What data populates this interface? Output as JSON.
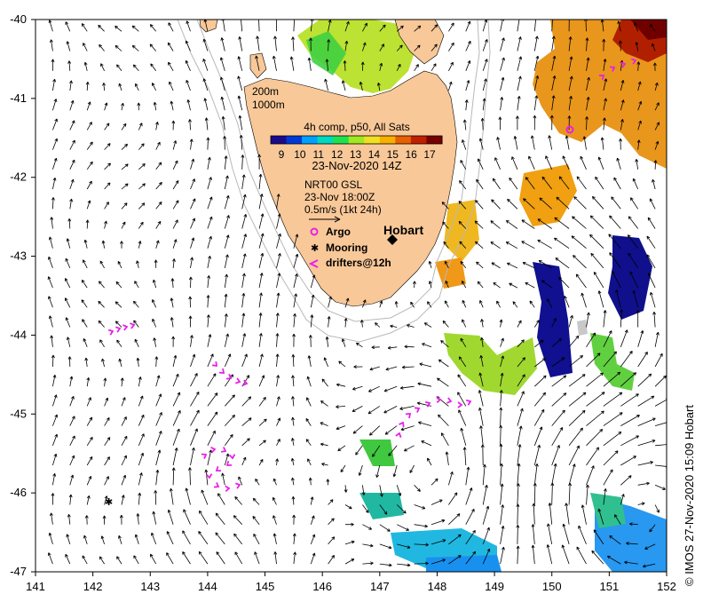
{
  "map": {
    "lon_range": [
      141,
      152
    ],
    "lat_range": [
      -47,
      -40
    ],
    "lon_ticks": [
      "141",
      "142",
      "143",
      "144",
      "145",
      "146",
      "147",
      "148",
      "149",
      "150",
      "151",
      "152"
    ],
    "lat_ticks": [
      "-40",
      "-41",
      "-42",
      "-43",
      "-44",
      "-45",
      "-46",
      "-47"
    ]
  },
  "colors": {
    "land": "#f8c898",
    "bathy": "#b8b8b8",
    "drifter": "#e820e8",
    "arrow": "#000000",
    "scale": [
      "#1a0a8c",
      "#0038d8",
      "#00a0ff",
      "#00d8c0",
      "#20e050",
      "#a0e820",
      "#f0e020",
      "#f8b000",
      "#e86000",
      "#c02000",
      "#780000"
    ]
  },
  "contours": {
    "label_200": "200m",
    "label_1000": "1000m"
  },
  "sst": {
    "title": "4h comp, p50, All Sats",
    "scale_labels": [
      "9",
      "10",
      "11",
      "12",
      "13",
      "14",
      "15",
      "16",
      "17"
    ],
    "date": "23-Nov-2020 14Z"
  },
  "currents": {
    "source": "NRT00 GSL",
    "time": "23-Nov 18:00Z",
    "scale_label": "0.5m/s (1kt 24h)"
  },
  "legend": {
    "argo": "Argo",
    "mooring": "Mooring",
    "drifters": "drifters@12h"
  },
  "places": {
    "hobart": "Hobart"
  },
  "credit": "© IMOS 27-Nov-2020 15:09 Hobart"
}
